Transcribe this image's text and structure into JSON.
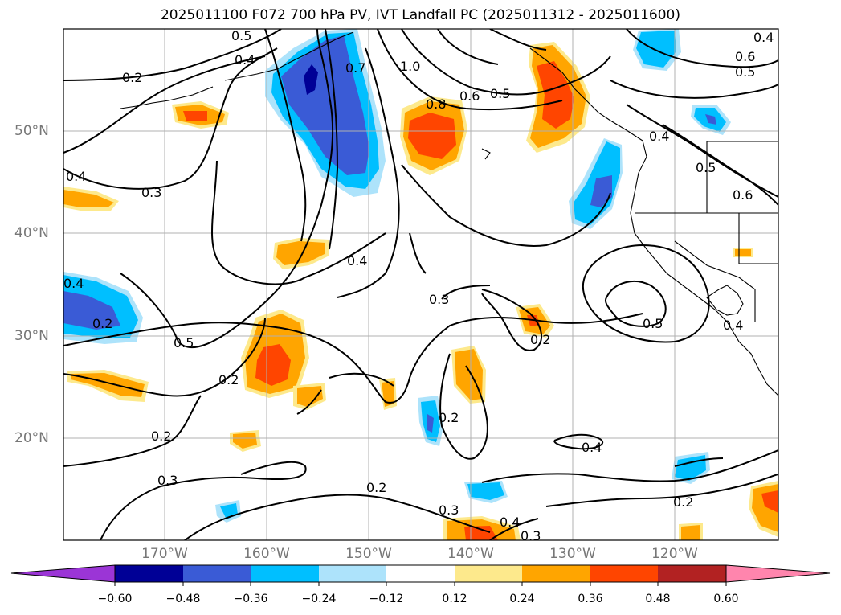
{
  "title": "2025011100 F072 700 hPa PV, IVT Landfall PC (2025011312 - 2025011600)",
  "map": {
    "lat_labels": [
      "50°N",
      "40°N",
      "30°N",
      "20°N"
    ],
    "lon_labels": [
      "170°W",
      "160°W",
      "150°W",
      "140°W",
      "130°W",
      "120°W"
    ],
    "contour_labels": [
      "0.5",
      "0.4",
      "0.2",
      "1.0",
      "0.5",
      "0.6",
      "0.4",
      "0.7",
      "0.8",
      "0.6",
      "0.5",
      "0.4",
      "0.5",
      "0.6",
      "0.4",
      "0.3",
      "0.4",
      "0.3",
      "0.5",
      "0.4",
      "0.2",
      "0.5",
      "0.2",
      "0.2",
      "0.2",
      "0.2",
      "0.3",
      "0.2",
      "0.3",
      "0.4",
      "0.3",
      "0.4",
      "0.2",
      "0.4"
    ]
  },
  "colorbar": {
    "ticks": [
      "−0.60",
      "−0.48",
      "−0.36",
      "−0.24",
      "−0.12",
      "0.12",
      "0.24",
      "0.36",
      "0.48",
      "0.60"
    ],
    "colors": [
      "#9b35d6",
      "#000096",
      "#3a5bd6",
      "#00bfff",
      "#ade3fb",
      "#ffffff",
      "#fde98c",
      "#ffa500",
      "#ff4500",
      "#b22222",
      "#ff85ad"
    ]
  }
}
